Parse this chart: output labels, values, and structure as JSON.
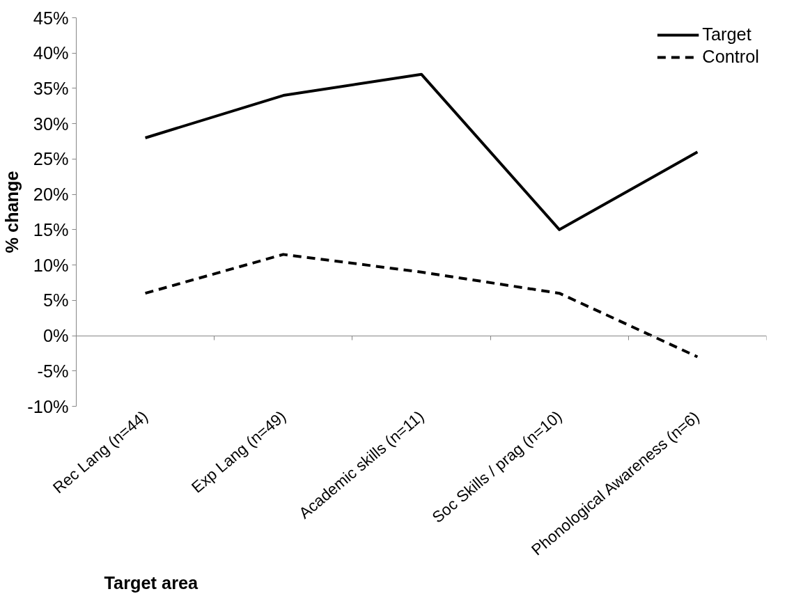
{
  "chart_data": {
    "type": "line",
    "xlabel": "Target area",
    "ylabel": "% change",
    "categories": [
      "Rec Lang (n=44)",
      "Exp Lang (n=49)",
      "Academic skills (n=11)",
      "Soc Skills / prag (n=10)",
      "Phonological Awareness (n=6)"
    ],
    "series": [
      {
        "name": "Target",
        "color": "#000000",
        "line_style": "solid",
        "values": [
          28,
          34,
          37,
          15,
          26
        ]
      },
      {
        "name": "Control",
        "color": "#000000",
        "line_style": "dashed",
        "values": [
          6,
          11.5,
          9,
          6,
          -3
        ]
      }
    ],
    "ylim": [
      -10,
      45
    ],
    "yticks": [
      {
        "value": -10,
        "label": "-10%"
      },
      {
        "value": -5,
        "label": "-5%"
      },
      {
        "value": 0,
        "label": "0%"
      },
      {
        "value": 5,
        "label": "5%"
      },
      {
        "value": 10,
        "label": "10%"
      },
      {
        "value": 15,
        "label": "15%"
      },
      {
        "value": 20,
        "label": "20%"
      },
      {
        "value": 25,
        "label": "25%"
      },
      {
        "value": 30,
        "label": "30%"
      },
      {
        "value": 35,
        "label": "35%"
      },
      {
        "value": 40,
        "label": "40%"
      },
      {
        "value": 45,
        "label": "45%"
      }
    ],
    "legend": "top right",
    "marker": "none"
  }
}
